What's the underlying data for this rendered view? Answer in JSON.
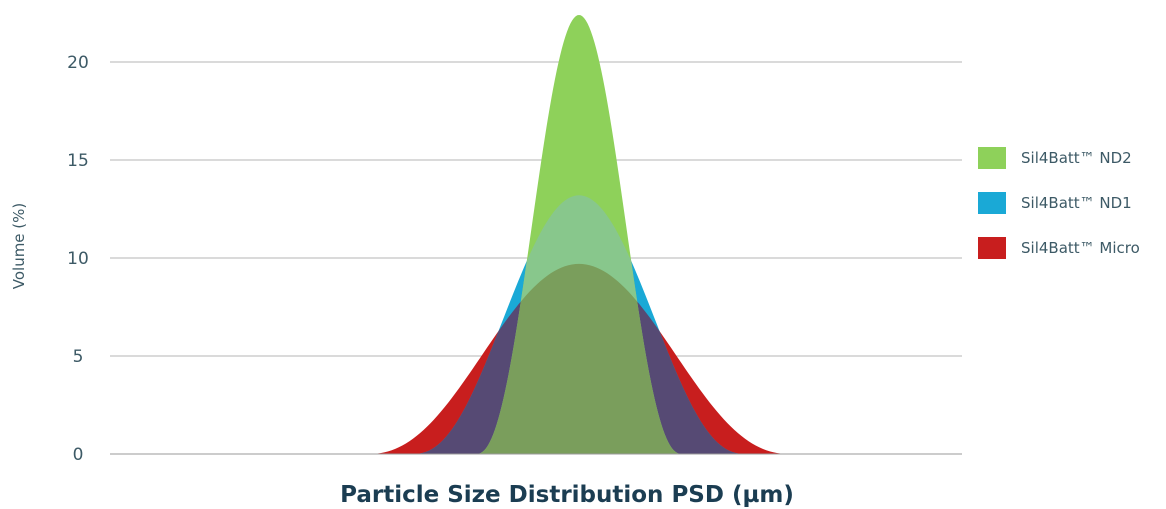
{
  "chart_data": {
    "type": "area",
    "title": "",
    "xlabel": "Particle Size Distribution PSD (µm)",
    "ylabel": "Volume (%)",
    "ylim": [
      0,
      20
    ],
    "yticks": [
      "0",
      "5",
      "10",
      "15",
      "20"
    ],
    "grid": true,
    "legend_position": "right",
    "colors": {
      "Micro": "#c81e1e",
      "ND1": "#1aa9d6",
      "ND2": "#8ed15a",
      "overlap_micro_nd1": "#564a74",
      "overlap_all": "#7a9e5c",
      "overlap_nd1_nd2": "#88c78c"
    },
    "series": [
      {
        "name": "Sil4Batt™ ND2",
        "peak": 22.4,
        "halfwidth": 103,
        "center": 0.0
      },
      {
        "name": "Sil4Batt™ ND1",
        "peak": 13.2,
        "halfwidth": 166,
        "center": 0.0
      },
      {
        "name": "Sil4Batt™ Micro",
        "peak": 9.7,
        "halfwidth": 212,
        "center": 0.0
      }
    ]
  },
  "legend": [
    {
      "label": "Sil4Batt™ ND2",
      "color": "#8ed15a"
    },
    {
      "label": "Sil4Batt™ ND1",
      "color": "#1aa9d6"
    },
    {
      "label": "Sil4Batt™ Micro",
      "color": "#c81e1e"
    }
  ]
}
